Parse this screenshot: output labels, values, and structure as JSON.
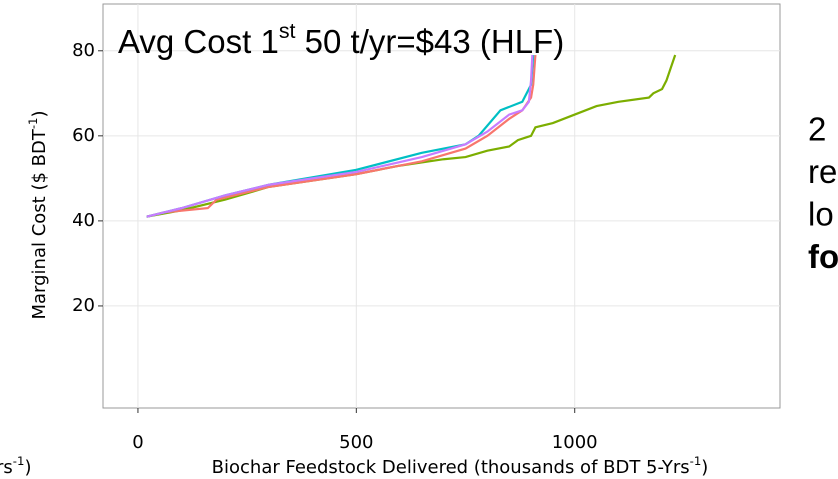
{
  "chart_data": {
    "type": "line",
    "annotation": {
      "text": "Avg Cost 1",
      "sup": "st",
      "rest": " 50 t/yr=$43 (HLF)"
    },
    "y_label": {
      "text": "Marginal Cost ($ BDT",
      "sup": "-1",
      "rest": ")"
    },
    "x_label": {
      "text": "Biochar Feedstock Delivered (thousands of BDT 5-Yrs",
      "sup": "-1",
      "rest": ")"
    },
    "left_fragment": {
      "text": "rs",
      "sup": "-1",
      "rest": ")"
    },
    "right_fragments": [
      "2",
      "re",
      "lo",
      "fo"
    ],
    "xlim": [
      -80,
      1470
    ],
    "ylim": [
      -4,
      91
    ],
    "xticks": [
      0,
      500,
      1000
    ],
    "yticks": [
      20,
      40,
      60,
      80
    ],
    "grid": true,
    "series": [
      {
        "color": "#7cae00",
        "x": [
          20,
          100,
          200,
          300,
          500,
          600,
          700,
          750,
          800,
          850,
          870,
          900,
          910,
          950,
          1000,
          1050,
          1100,
          1170,
          1180,
          1200,
          1210,
          1220,
          1230
        ],
        "values": [
          41,
          42.5,
          45,
          48,
          51,
          53,
          54.5,
          55,
          56.5,
          57.5,
          59,
          60,
          62,
          63,
          65,
          67,
          68,
          69,
          70,
          71,
          73,
          76,
          79
        ]
      },
      {
        "color": "#f8766d",
        "x": [
          20,
          60,
          160,
          180,
          300,
          500,
          650,
          750,
          800,
          850,
          880,
          900,
          905,
          910
        ],
        "values": [
          41,
          42,
          43,
          45,
          48,
          51,
          54,
          57,
          60,
          64,
          66,
          69,
          72,
          79
        ]
      },
      {
        "color": "#00bfc4",
        "x": [
          20,
          100,
          200,
          300,
          500,
          650,
          750,
          780,
          830,
          880,
          900,
          905
        ],
        "values": [
          41,
          43,
          46,
          48.5,
          52,
          56,
          58,
          60,
          66,
          68,
          72,
          79
        ]
      },
      {
        "color": "#c77cff",
        "x": [
          20,
          100,
          200,
          300,
          500,
          650,
          750,
          800,
          850,
          880,
          895,
          900,
          903
        ],
        "values": [
          41,
          43,
          46,
          48.5,
          51.5,
          55,
          58,
          61,
          65,
          66,
          68,
          73,
          79
        ]
      }
    ]
  }
}
